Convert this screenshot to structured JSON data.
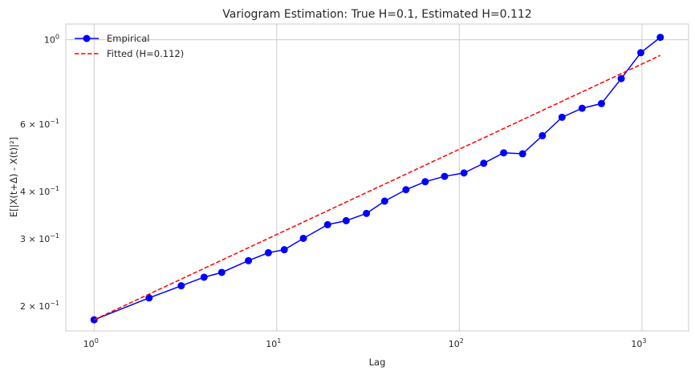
{
  "chart_data": {
    "type": "line",
    "title": "Variogram Estimation: True H=0.1, Estimated H=0.112",
    "xlabel": "Lag",
    "ylabel": "E[|X(t+Δ) - X(t)|²]",
    "xscale": "log",
    "yscale": "log",
    "xlim": [
      0.7,
      1800
    ],
    "ylim": [
      0.172,
      1.1
    ],
    "grid": true,
    "legend_position": "top-left",
    "x_ticks": [
      {
        "value": 1,
        "base": "10",
        "exp": "0"
      },
      {
        "value": 10,
        "base": "10",
        "exp": "1"
      },
      {
        "value": 100,
        "base": "10",
        "exp": "2"
      },
      {
        "value": 1000,
        "base": "10",
        "exp": "3"
      }
    ],
    "y_ticks": [
      {
        "value": 1.0,
        "base": "10",
        "exp": "0"
      },
      {
        "value": 0.6,
        "base": "6 × 10",
        "exp": "−1"
      },
      {
        "value": 0.4,
        "base": "4 × 10",
        "exp": "−1"
      },
      {
        "value": 0.3,
        "base": "3 × 10",
        "exp": "−1"
      },
      {
        "value": 0.2,
        "base": "2 × 10",
        "exp": "−1"
      }
    ],
    "series": [
      {
        "name": "Empirical",
        "color": "#0000ff",
        "style": "solid-markers",
        "x": [
          1,
          2,
          3,
          4,
          5,
          7,
          9,
          11,
          14,
          19,
          24,
          31,
          39,
          51,
          65,
          83,
          106,
          136,
          175,
          222,
          285,
          365,
          470,
          600,
          770,
          985,
          1260
        ],
        "y": [
          0.184,
          0.21,
          0.226,
          0.238,
          0.245,
          0.263,
          0.276,
          0.281,
          0.301,
          0.327,
          0.335,
          0.35,
          0.377,
          0.404,
          0.424,
          0.438,
          0.447,
          0.474,
          0.505,
          0.502,
          0.56,
          0.626,
          0.661,
          0.68,
          0.791,
          0.925,
          1.015
        ]
      },
      {
        "name": "Fitted (H=0.112)",
        "color": "#ff0000",
        "style": "dashed",
        "x": [
          1,
          1260
        ],
        "y": [
          0.184,
          0.91
        ]
      }
    ]
  }
}
